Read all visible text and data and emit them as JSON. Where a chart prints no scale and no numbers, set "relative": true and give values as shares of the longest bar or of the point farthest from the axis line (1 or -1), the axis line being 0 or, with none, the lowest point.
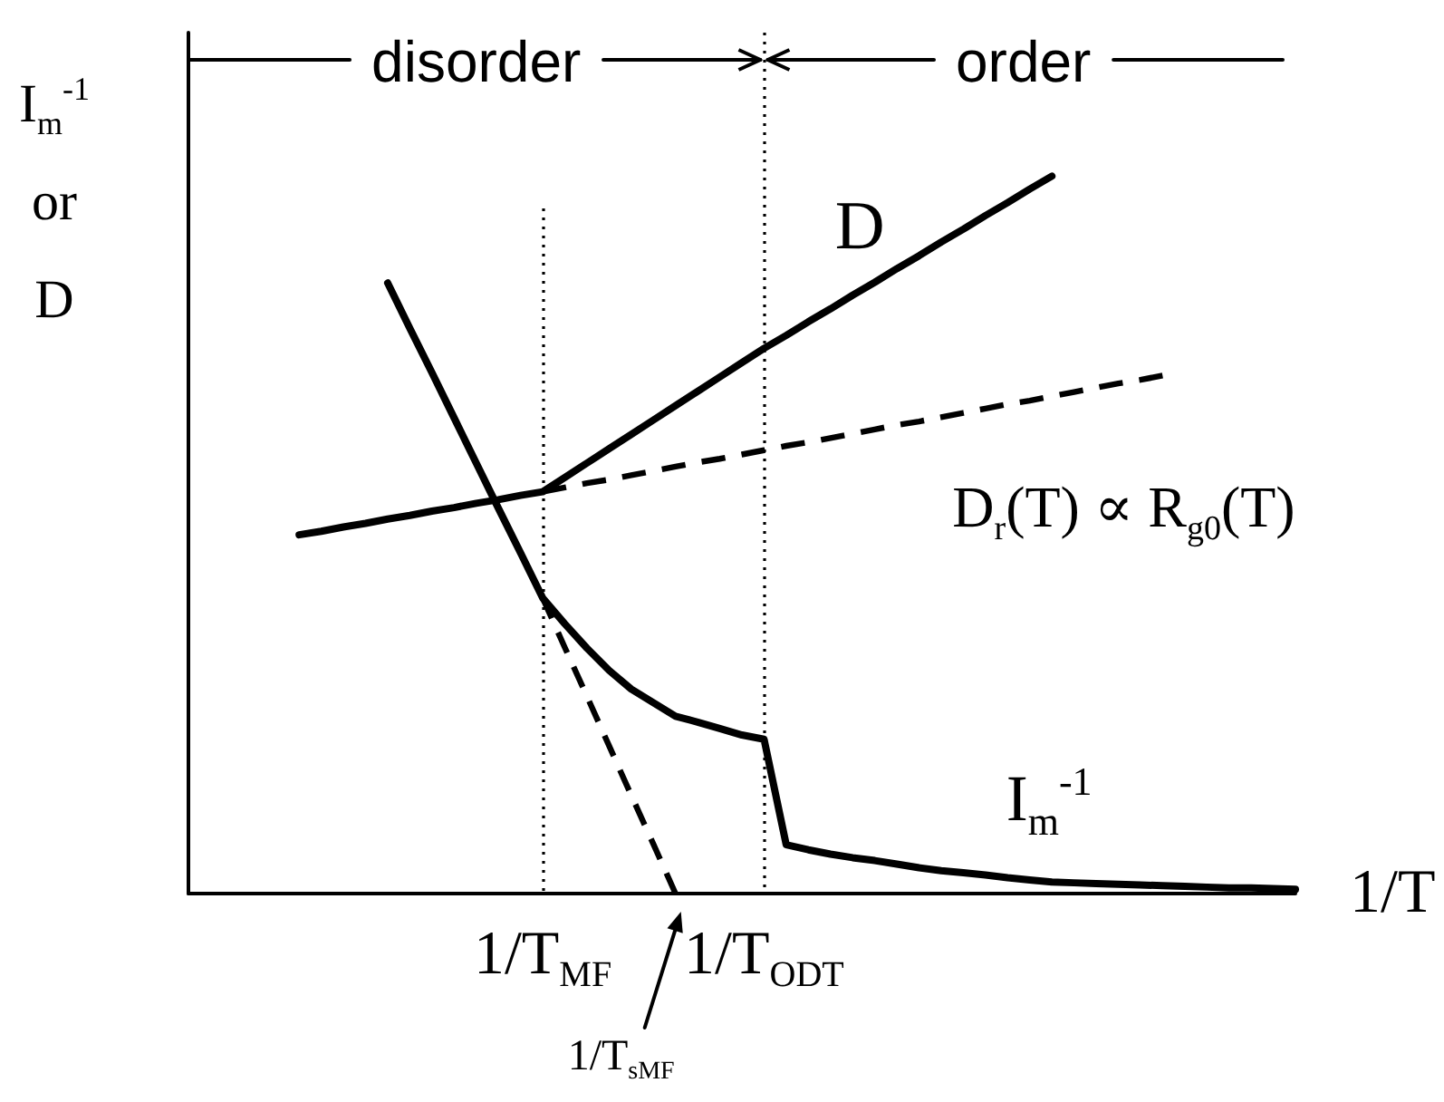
{
  "chart_data": {
    "type": "line",
    "relative": true,
    "marker": "none",
    "xlabel": "1/T",
    "ylabel": "I$_{m}$$^{-1}$ or D",
    "annotations": [
      "disorder",
      "order",
      "1/T$_{sMF}$"
    ],
    "categories": [
      null,
      null,
      null,
      null,
      null,
      null,
      null,
      null,
      null,
      null,
      null,
      null,
      null,
      null,
      null,
      null,
      "1/T$_{MF}$",
      null,
      null,
      null,
      null,
      null,
      null,
      null,
      null,
      null,
      "1/T$_{ODT}$",
      null,
      null,
      null,
      null,
      null,
      null,
      null,
      null,
      null,
      null,
      null,
      null,
      null,
      null,
      null,
      null,
      null,
      null,
      null,
      null,
      null,
      null,
      null,
      null
    ],
    "ref_lines": [
      {
        "axis": "x",
        "value": "1/T$_{MF}$",
        "line_style": "dotted",
        "color": "#000000"
      },
      {
        "axis": "x",
        "value": "1/T$_{ODT}$",
        "line_style": "dotted",
        "color": "#000000"
      }
    ],
    "series": [
      {
        "name": "D",
        "color": "#000000",
        "line_style": "solid",
        "values": [
          null,
          null,
          null,
          null,
          null,
          0.5,
          0.505,
          0.511,
          0.516,
          0.522,
          0.527,
          0.533,
          0.538,
          0.544,
          0.549,
          0.555,
          0.56,
          0.58,
          0.6,
          0.62,
          0.64,
          0.66,
          0.68,
          0.7,
          0.72,
          0.74,
          0.76,
          0.778,
          0.797,
          0.815,
          0.834,
          0.852,
          0.871,
          0.889,
          0.908,
          0.926,
          0.945,
          0.963,
          0.982,
          1,
          null,
          null,
          null,
          null,
          null,
          null,
          null,
          null,
          null,
          null,
          null
        ]
      },
      {
        "name": "D$_{r}$(T) ∝ R$_{g0}$(T)",
        "color": "#000000",
        "line_style": "dashed",
        "values": [
          null,
          null,
          null,
          null,
          null,
          null,
          null,
          null,
          null,
          null,
          null,
          null,
          null,
          null,
          null,
          null,
          0.56,
          0.566,
          0.572,
          0.577,
          0.583,
          0.589,
          0.595,
          0.601,
          0.606,
          0.612,
          0.618,
          0.624,
          0.629,
          0.635,
          0.641,
          0.647,
          0.653,
          0.658,
          0.664,
          0.67,
          0.676,
          0.682,
          0.687,
          0.693,
          0.699,
          0.705,
          0.711,
          0.716,
          0.722,
          null,
          null,
          null,
          null,
          null,
          null
        ]
      },
      {
        "name": "I$_{m}$$^{-1}$",
        "color": "#000000",
        "line_style": "solid",
        "values": [
          null,
          null,
          null,
          null,
          null,
          null,
          null,
          null,
          null,
          0.851,
          0.788,
          0.726,
          0.663,
          0.6,
          0.537,
          0.475,
          0.412,
          0.376,
          0.342,
          0.311,
          0.285,
          0.266,
          0.247,
          0.239,
          0.23,
          0.221,
          0.215,
          0.068,
          0.061,
          0.055,
          0.05,
          0.046,
          0.041,
          0.036,
          0.032,
          0.029,
          0.026,
          0.022,
          0.019,
          0.016,
          0.015,
          0.014,
          0.013,
          0.012,
          0.011,
          0.01,
          0.009,
          0.008,
          0.008,
          0.007,
          0.006
        ]
      },
      {
        "color": "#000000",
        "line_style": "dashed",
        "values": [
          null,
          null,
          null,
          null,
          null,
          null,
          null,
          null,
          null,
          null,
          null,
          null,
          null,
          null,
          null,
          null,
          0.412,
          0.343,
          0.275,
          0.206,
          0.137,
          0.069,
          0,
          null,
          null,
          null,
          null,
          null,
          null,
          null,
          null,
          null,
          null,
          null,
          null,
          null,
          null,
          null,
          null,
          null,
          null,
          null,
          null,
          null,
          null,
          null,
          null,
          null,
          null,
          null,
          null
        ]
      }
    ]
  }
}
